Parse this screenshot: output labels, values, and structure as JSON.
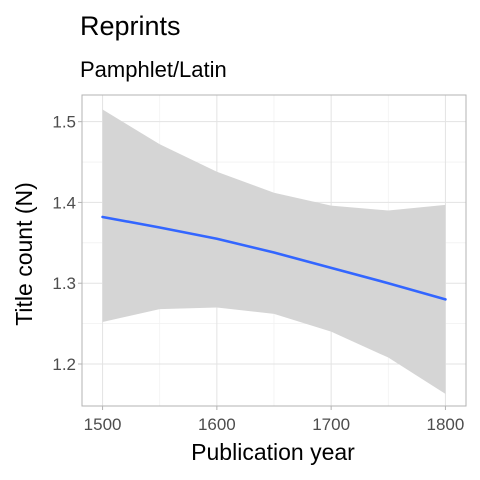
{
  "chart_data": {
    "type": "line",
    "title": "Reprints",
    "subtitle": "Pamphlet/Latin",
    "xlabel": "Publication year",
    "ylabel": "Title count (N)",
    "xlim": [
      1482,
      1818
    ],
    "ylim": [
      1.148,
      1.533
    ],
    "x_ticks": [
      1500,
      1600,
      1700,
      1800
    ],
    "y_ticks": [
      1.2,
      1.3,
      1.4,
      1.5
    ],
    "x_tick_labels": [
      "1500",
      "1600",
      "1700",
      "1800"
    ],
    "y_tick_labels": [
      "1.2",
      "1.3",
      "1.4",
      "1.5"
    ],
    "grid": true,
    "legend": "none",
    "colors": {
      "line": "#3366ff",
      "ribbon": "#d5d5d5"
    },
    "series": [
      {
        "x": [
          1500,
          1550,
          1600,
          1650,
          1700,
          1750,
          1800
        ],
        "y": [
          1.382,
          1.369,
          1.355,
          1.338,
          1.319,
          1.3,
          1.28
        ],
        "lower": [
          1.252,
          1.268,
          1.27,
          1.262,
          1.24,
          1.208,
          1.163
        ],
        "upper": [
          1.515,
          1.472,
          1.438,
          1.412,
          1.396,
          1.39,
          1.397
        ]
      }
    ]
  }
}
